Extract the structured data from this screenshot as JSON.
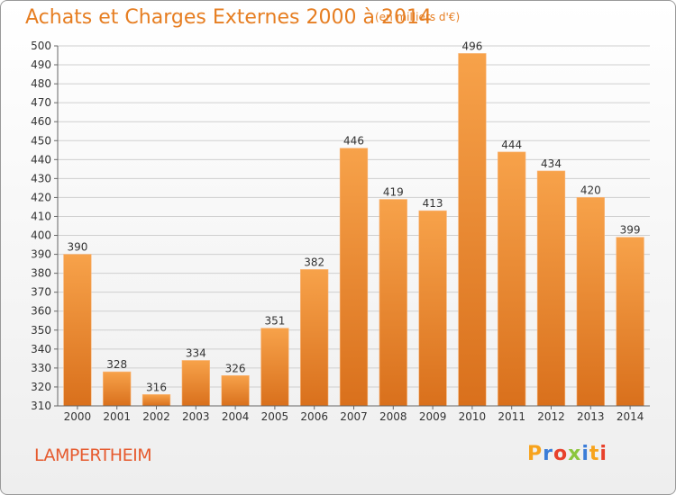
{
  "header": {
    "title": "Achats et Charges Externes 2000 à 2014",
    "subtitle": "(en milliers d'€)"
  },
  "footer": {
    "city": "LAMPERTHEIM",
    "logo_letters": [
      "P",
      "r",
      "o",
      "x",
      "i",
      "t",
      "i"
    ],
    "logo_colors": [
      "#f7a31c",
      "#3b7dd8",
      "#e8412c",
      "#8cc63e",
      "#3b7dd8",
      "#f7a31c",
      "#e8412c"
    ]
  },
  "chart_data": {
    "type": "bar",
    "title": "Achats et Charges Externes 2000 à 2014",
    "subtitle": "(en milliers d'€)",
    "categories": [
      "2000",
      "2001",
      "2002",
      "2003",
      "2004",
      "2005",
      "2006",
      "2007",
      "2008",
      "2009",
      "2010",
      "2011",
      "2012",
      "2013",
      "2014"
    ],
    "values": [
      390,
      328,
      316,
      334,
      326,
      351,
      382,
      446,
      419,
      413,
      496,
      444,
      434,
      420,
      399
    ],
    "ylim": [
      310,
      500
    ],
    "yticks": [
      310,
      320,
      330,
      340,
      350,
      360,
      370,
      380,
      390,
      400,
      410,
      420,
      430,
      440,
      450,
      460,
      470,
      480,
      490,
      500
    ],
    "grid": true,
    "bar_color": "#f0922f",
    "bar_color_dark": "#d96f1a"
  }
}
